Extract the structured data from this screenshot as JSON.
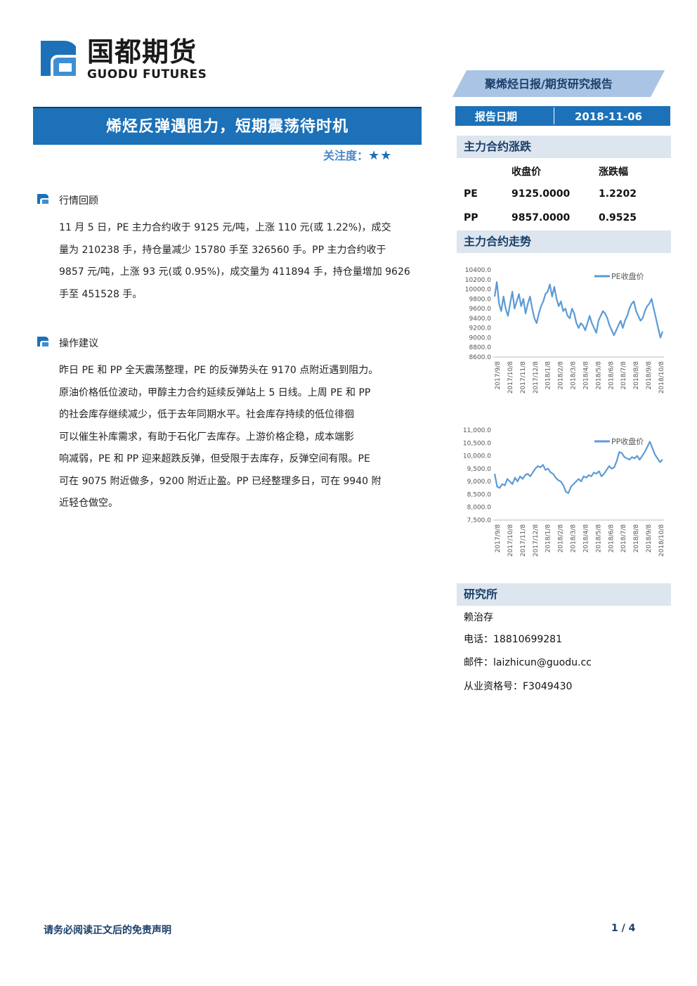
{
  "header": {
    "logo_cn": "国都期货",
    "logo_en": "GUODU FUTURES",
    "title": "烯烃反弹遇阻力，短期震荡待时机",
    "attention_label": "关注度：",
    "attention_stars": "★★"
  },
  "sections": [
    {
      "title": "行情回顾",
      "lines": [
        "11 月 5 日，PE 主力合约收于 9125 元/吨，上涨 110 元(或 1.22%)，成交",
        "量为 210238 手，持仓量减少 15780 手至 326560 手。PP 主力合约收于",
        "9857 元/吨，上涨 93 元(或 0.95%)，成交量为 411894 手，持仓量增加 9626",
        "手至 451528 手。"
      ]
    },
    {
      "title": "操作建议",
      "lines": [
        "昨日 PE 和 PP 全天震荡整理，PE 的反弹势头在 9170 点附近遇到阻力。",
        "原油价格低位波动，甲醇主力合约延续反弹站上 5 日线。上周 PE 和 PP",
        "的社会库存继续减少，低于去年同期水平。社会库存持续的低位徘徊",
        "可以催生补库需求，有助于石化厂去库存。上游价格企稳，成本端影",
        "响减弱，PE 和 PP 迎来超跌反弹，但受限于去库存，反弹空间有限。PE",
        "可在 9075 附近做多，9200 附近止盈。PP 已经整理多日，可在 9940 附",
        "近轻仓做空。"
      ]
    }
  ],
  "sidebar": {
    "report_type": "聚烯烃日报/期货研究报告",
    "date_label": "报告日期",
    "date_value": "2018-11-06",
    "main_contract_change": {
      "title": "主力合约涨跌",
      "col_close": "收盘价",
      "col_change": "涨跌幅",
      "rows": [
        {
          "name": "PE",
          "close": "9125.0000",
          "change": "1.2202"
        },
        {
          "name": "PP",
          "close": "9857.0000",
          "change": "0.9525"
        }
      ]
    },
    "trend_title": "主力合约走势",
    "research_title": "研究所",
    "analyst": "赖治存",
    "phone": "电话：18810699281",
    "email": "邮件：laizhicun@guodu.cc",
    "license": "从业资格号：F3049430"
  },
  "footer": {
    "disclaimer": "请务必阅读正文后的免责声明",
    "page": "1 / 4"
  },
  "colors": {
    "primary_blue": "#1c71b8",
    "line_blue": "#5b9bd5",
    "section_gray": "#dde5ef"
  },
  "chart_data": [
    {
      "type": "line",
      "legend": "PE收盘价",
      "legend_position": "top-right",
      "ylim": [
        8600,
        10400
      ],
      "yticks": [
        "10400.0",
        "10200.0",
        "10000.0",
        "9800.0",
        "9600.0",
        "9400.0",
        "9200.0",
        "9000.0",
        "8800.0",
        "8600.0"
      ],
      "xticks": [
        "2017/9/8",
        "2017/10/8",
        "2017/11/8",
        "2017/12/8",
        "2018/1/8",
        "2018/2/8",
        "2018/3/8",
        "2018/4/8",
        "2018/5/8",
        "2018/6/8",
        "2018/7/8",
        "2018/8/8",
        "2018/9/8",
        "2018/10/8"
      ],
      "series": [
        {
          "values": [
            9850,
            10150,
            9700,
            9550,
            9850,
            9600,
            9450,
            9700,
            9950,
            9600,
            9750,
            9900,
            9650,
            9800,
            9500,
            9700,
            9850,
            9600,
            9400,
            9300,
            9500,
            9650,
            9750,
            9900,
            9950,
            10100,
            9850,
            10050,
            9800,
            9650,
            9750,
            9550,
            9600,
            9450,
            9400,
            9600,
            9500,
            9300,
            9200,
            9300,
            9250,
            9150,
            9300,
            9450,
            9300,
            9200,
            9100,
            9350,
            9450,
            9550,
            9500,
            9400,
            9250,
            9150,
            9050,
            9150,
            9250,
            9350,
            9200,
            9350,
            9450,
            9600,
            9700,
            9750,
            9550,
            9450,
            9350,
            9400,
            9550,
            9650,
            9700,
            9800,
            9600,
            9400,
            9200,
            9000,
            9125
          ]
        }
      ]
    },
    {
      "type": "line",
      "legend": "PP收盘价",
      "legend_position": "top-right",
      "ylim": [
        7500,
        11000
      ],
      "yticks": [
        "11,000.0",
        "10,500.0",
        "10,000.0",
        "9,500.0",
        "9,000.0",
        "8,500.0",
        "8,000.0",
        "7,500.0"
      ],
      "xticks": [
        "2017/9/8",
        "2017/10/8",
        "2017/11/8",
        "2017/12/8",
        "2018/1/8",
        "2018/2/8",
        "2018/3/8",
        "2018/4/8",
        "2018/5/8",
        "2018/6/8",
        "2018/7/8",
        "2018/8/8",
        "2018/9/8",
        "2018/10/8"
      ],
      "series": [
        {
          "values": [
            9300,
            8800,
            8750,
            8900,
            8850,
            9100,
            9000,
            8900,
            9150,
            9000,
            9200,
            9100,
            9250,
            9300,
            9200,
            9350,
            9500,
            9600,
            9550,
            9650,
            9450,
            9500,
            9350,
            9300,
            9150,
            9050,
            9000,
            8850,
            8600,
            8550,
            8800,
            8900,
            9000,
            9100,
            9000,
            9200,
            9150,
            9250,
            9200,
            9350,
            9300,
            9400,
            9200,
            9300,
            9450,
            9600,
            9500,
            9550,
            9800,
            10150,
            10100,
            9950,
            9900,
            9850,
            9950,
            9900,
            10000,
            9850,
            10000,
            10150,
            10350,
            10550,
            10300,
            10050,
            9900,
            9750,
            9857
          ]
        }
      ]
    }
  ]
}
